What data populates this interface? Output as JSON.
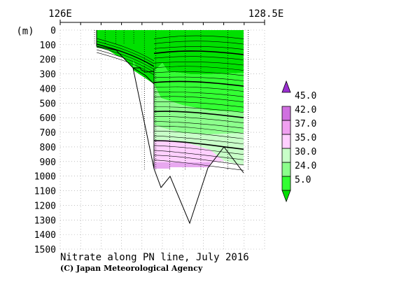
{
  "chart_data": {
    "type": "contour",
    "title": "Nitrate along PN line, July 2016",
    "credit": "(C) Japan Meteorological Agency",
    "x_axis": {
      "label_left": "126E",
      "label_right": "128.5E",
      "range": [
        126,
        128.5
      ]
    },
    "y_axis": {
      "unit": "(m)",
      "range": [
        0,
        1500
      ],
      "inverted": true,
      "ticks": [
        0,
        100,
        200,
        300,
        400,
        500,
        600,
        700,
        800,
        900,
        1000,
        1100,
        1200,
        1300,
        1400,
        1500
      ]
    },
    "colorbar": {
      "labels": [
        "45.0",
        "42.0",
        "37.0",
        "35.0",
        "30.0",
        "24.0",
        "5.0"
      ],
      "colors": [
        "#00e000",
        "#33ff33",
        "#8cff8c",
        "#c8ffc8",
        "#ffd0ff",
        "#f0a0f0",
        "#d070e0",
        "#9a2fd0"
      ]
    },
    "bathymetry": [
      {
        "lon": 126.42,
        "depth": 130
      },
      {
        "lon": 126.55,
        "depth": 130
      },
      {
        "lon": 126.68,
        "depth": 200
      },
      {
        "lon": 126.78,
        "depth": 270
      },
      {
        "lon": 126.9,
        "depth": 640
      },
      {
        "lon": 127.0,
        "depth": 1000
      },
      {
        "lon": 127.11,
        "depth": 1070
      },
      {
        "lon": 127.2,
        "depth": 1020
      },
      {
        "lon": 127.5,
        "depth": 1310
      },
      {
        "lon": 127.9,
        "depth": 940
      },
      {
        "lon": 128.08,
        "depth": 810
      },
      {
        "lon": 128.3,
        "depth": 970
      }
    ],
    "stations_lon": [
      126.42,
      126.55,
      126.68,
      126.78,
      126.9,
      127.03,
      127.17,
      127.34,
      127.53,
      127.72,
      128.05,
      128.3
    ],
    "contour_depths_at_ends": [
      {
        "west": 60,
        "east": 60
      },
      {
        "west": 100,
        "east": 130
      },
      {
        "west": 280,
        "east": 280
      },
      {
        "west": 420,
        "east": 420
      },
      {
        "west": 580,
        "east": 600
      },
      {
        "west": 740,
        "east": 700
      },
      {
        "west": 840,
        "east": 920
      }
    ]
  }
}
